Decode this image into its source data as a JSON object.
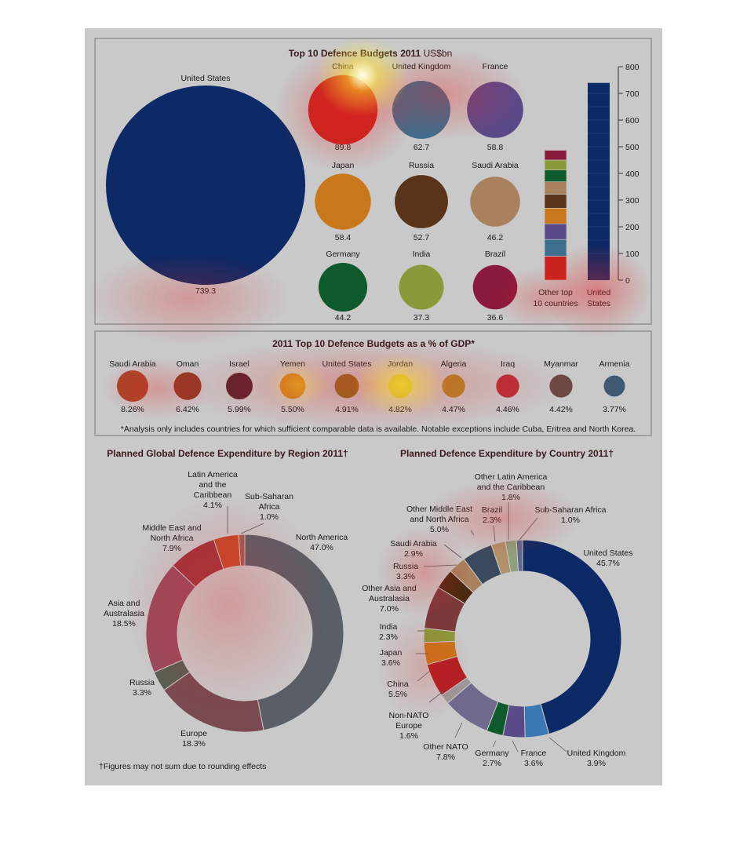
{
  "chart_data": [
    {
      "type": "bubble",
      "title": "Top 10 Defence Budgets 2011",
      "title_unit": "US$bn",
      "categories": [
        "United States",
        "China",
        "United Kingdom",
        "France",
        "Japan",
        "Russia",
        "Saudi Arabia",
        "Germany",
        "India",
        "Brazil"
      ],
      "values": [
        739.3,
        89.8,
        62.7,
        58.8,
        58.4,
        52.7,
        46.2,
        44.2,
        37.3,
        36.6
      ],
      "value_labels": [
        "739.3",
        "89.8",
        "62.7",
        "58.8",
        "58.4",
        "52.7",
        "46.2",
        "44.2",
        "37.3",
        "36.6"
      ],
      "colors": [
        "#0c2a66",
        "#c8231f",
        "#3e6f8e",
        "#5b4a8a",
        "#c9771b",
        "#5a3418",
        "#a8825e",
        "#0f5a2c",
        "#8a9a3a",
        "#8a1a3c"
      ]
    },
    {
      "type": "stacked-bar",
      "categories": [
        "Other top\n10 countries",
        "United\nStates"
      ],
      "category_lines": [
        [
          "Other top",
          "10 countries"
        ],
        [
          "United",
          "States"
        ]
      ],
      "ylim": [
        0,
        800
      ],
      "yticks": [
        "0",
        "100",
        "200",
        "300",
        "400",
        "500",
        "600",
        "700",
        "800"
      ],
      "stack_other": [
        {
          "name": "China",
          "value": 89.8,
          "color": "#c8231f"
        },
        {
          "name": "United Kingdom",
          "value": 62.7,
          "color": "#3e6f8e"
        },
        {
          "name": "France",
          "value": 58.8,
          "color": "#5b4a8a"
        },
        {
          "name": "Japan",
          "value": 58.4,
          "color": "#c9771b"
        },
        {
          "name": "Russia",
          "value": 52.7,
          "color": "#5a3418"
        },
        {
          "name": "Saudi Arabia",
          "value": 46.2,
          "color": "#a8825e"
        },
        {
          "name": "Germany",
          "value": 44.2,
          "color": "#0f5a2c"
        },
        {
          "name": "India",
          "value": 37.3,
          "color": "#8a9a3a"
        },
        {
          "name": "Brazil",
          "value": 36.6,
          "color": "#8a1a3c"
        }
      ],
      "stack_us": {
        "name": "United States",
        "value": 739.3,
        "color": "#0c2a66"
      }
    },
    {
      "type": "bubble",
      "title": "2011 Top 10 Defence Budgets as a % of GDP*",
      "categories": [
        "Saudi Arabia",
        "Oman",
        "Israel",
        "Yemen",
        "United States",
        "Jordan",
        "Algeria",
        "Iraq",
        "Myanmar",
        "Armenia"
      ],
      "values": [
        8.26,
        6.42,
        5.99,
        5.5,
        4.91,
        4.82,
        4.47,
        4.46,
        4.42,
        3.77
      ],
      "value_labels": [
        "8.26%",
        "6.42%",
        "5.99%",
        "5.50%",
        "4.91%",
        "4.82%",
        "4.47%",
        "4.46%",
        "4.42%",
        "3.77%"
      ],
      "colors": [
        "#a8452a",
        "#8e3a26",
        "#5a2430",
        "#c8761e",
        "#8a6f1e",
        "#c7c23a",
        "#b28a2a",
        "#b8303a",
        "#6e4a44",
        "#3f5a72"
      ],
      "footnote": "*Analysis only includes countries for which sufficient comparable data is available. Notable exceptions include Cuba, Eritrea and North Korea."
    },
    {
      "type": "pie",
      "title": "Planned Global Defence Expenditure by Region 2011†",
      "slices": [
        {
          "label": [
            "North America",
            "47.0%"
          ],
          "value": 47.0,
          "color": "#5a5f68"
        },
        {
          "label": [
            "Europe",
            "18.3%"
          ],
          "value": 18.3,
          "color": "#7a4a52"
        },
        {
          "label": [
            "Russia",
            "3.3%"
          ],
          "value": 3.3,
          "color": "#5a5e52"
        },
        {
          "label": [
            "Asia and",
            "Australasia",
            "18.5%"
          ],
          "value": 18.5,
          "color": "#9a4a5e"
        },
        {
          "label": [
            "Middle East and",
            "North Africa",
            "7.9%"
          ],
          "value": 7.9,
          "color": "#a0343c"
        },
        {
          "label": [
            "Latin America",
            "and the",
            "Caribbean",
            "4.1%"
          ],
          "value": 4.1,
          "color": "#c24a2a"
        },
        {
          "label": [
            "Sub-Saharan",
            "Africa",
            "1.0%"
          ],
          "value": 1.0,
          "color": "#a45a50"
        }
      ],
      "footnote": "†Figures may not sum due to rounding effects"
    },
    {
      "type": "pie",
      "title": "Planned Defence Expenditure by Country 2011†",
      "slices": [
        {
          "label": [
            "United States",
            "45.7%"
          ],
          "value": 45.7,
          "color": "#0c2a66"
        },
        {
          "label": [
            "United Kingdom",
            "3.9%"
          ],
          "value": 3.9,
          "color": "#3a78b4"
        },
        {
          "label": [
            "France",
            "3.6%"
          ],
          "value": 3.6,
          "color": "#5b4a8a"
        },
        {
          "label": [
            "Germany",
            "2.7%"
          ],
          "value": 2.7,
          "color": "#0f5a2c"
        },
        {
          "label": [
            "Other NATO",
            "7.8%"
          ],
          "value": 7.8,
          "color": "#6f6a8e"
        },
        {
          "label": [
            "Non-NATO",
            "Europe",
            "1.6%"
          ],
          "value": 1.6,
          "color": "#9a9a9a"
        },
        {
          "label": [
            "China",
            "5.5%"
          ],
          "value": 5.5,
          "color": "#b02024"
        },
        {
          "label": [
            "Japan",
            "3.6%"
          ],
          "value": 3.6,
          "color": "#c9771b"
        },
        {
          "label": [
            "India",
            "2.3%"
          ],
          "value": 2.3,
          "color": "#8a9a3a"
        },
        {
          "label": [
            "Other Asia and",
            "Australasia",
            "7.0%"
          ],
          "value": 7.0,
          "color": "#7a3a3a"
        },
        {
          "label": [
            "Russia",
            "3.3%"
          ],
          "value": 3.3,
          "color": "#4a2a12"
        },
        {
          "label": [
            "Saudi Arabia",
            "2.9%"
          ],
          "value": 2.9,
          "color": "#a8825e"
        },
        {
          "label": [
            "Other Middle East",
            "and North Africa",
            "5.0%"
          ],
          "value": 5.0,
          "color": "#3a4a5e"
        },
        {
          "label": [
            "Brazil",
            "2.3%"
          ],
          "value": 2.3,
          "color": "#b0926a"
        },
        {
          "label": [
            "Other Latin America",
            "and the Caribbean",
            "1.8%"
          ],
          "value": 1.8,
          "color": "#8ea07e"
        },
        {
          "label": [
            "Sub-Saharan Africa",
            "1.0%"
          ],
          "value": 1.0,
          "color": "#5a6a8a"
        }
      ]
    }
  ]
}
